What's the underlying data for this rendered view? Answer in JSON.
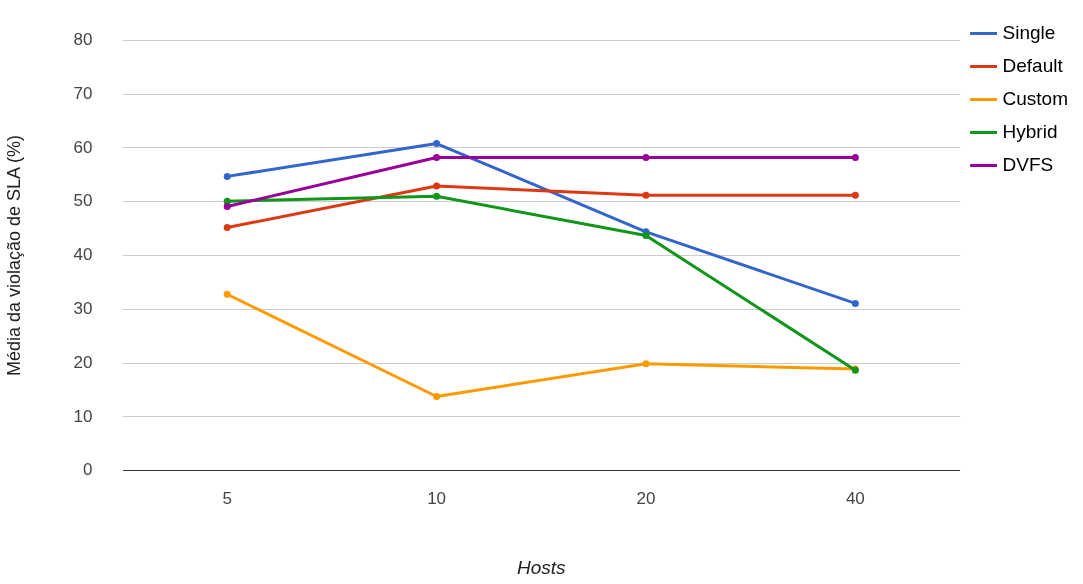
{
  "chart_data": {
    "type": "line",
    "categories": [
      "5",
      "10",
      "20",
      "40"
    ],
    "xlabel": "Hosts",
    "ylabel": "Média da violação de SLA (%)",
    "ylim": [
      0,
      80
    ],
    "yticks": [
      0,
      10,
      20,
      30,
      40,
      50,
      60,
      70,
      80
    ],
    "grid": "y",
    "legend": "top right",
    "marker": "circle",
    "line_style": "solid",
    "series": [
      {
        "name": "Single",
        "color": "#3366cc",
        "values": [
          54.7,
          60.8,
          44.4,
          31.1
        ]
      },
      {
        "name": "Default",
        "color": "#dc3912",
        "values": [
          45.2,
          52.9,
          51.2,
          51.2
        ]
      },
      {
        "name": "Custom",
        "color": "#ff9900",
        "values": [
          32.8,
          13.8,
          19.9,
          18.9
        ]
      },
      {
        "name": "Hybrid",
        "color": "#109618",
        "values": [
          50.1,
          51.0,
          43.7,
          18.7
        ]
      },
      {
        "name": "DVFS",
        "color": "#990099",
        "values": [
          49.1,
          58.2,
          58.2,
          58.2
        ]
      }
    ]
  }
}
